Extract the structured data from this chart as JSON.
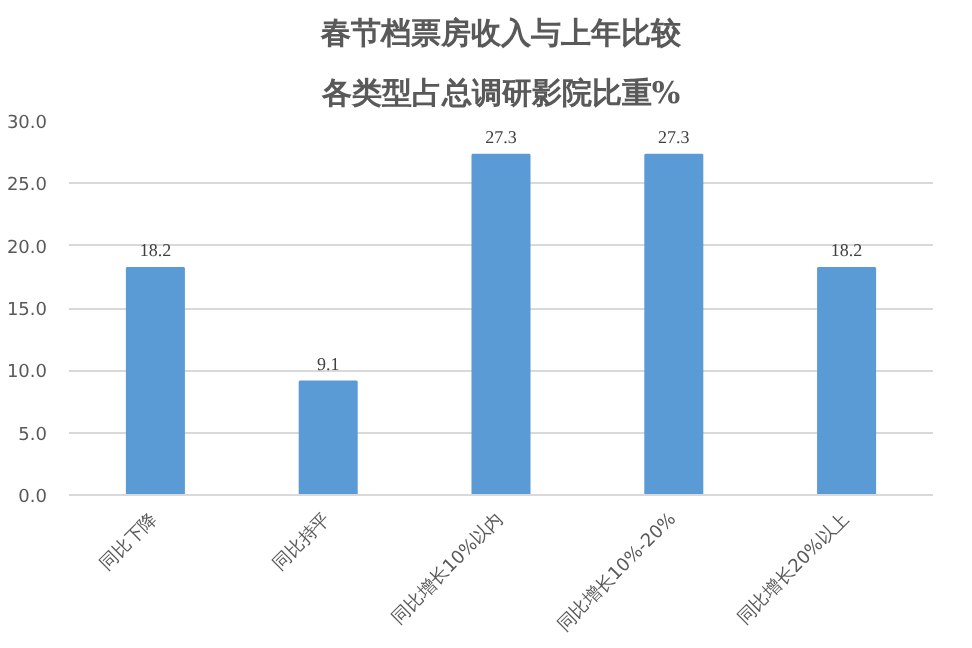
{
  "chart_data": {
    "type": "bar",
    "title": "春节档票房收入与上年比较",
    "subtitle": "各类型占总调研影院比重%",
    "categories": [
      "同比下降",
      "同比持平",
      "同比增长10%以内",
      "同比增长10%-20%",
      "同比增长20%以上"
    ],
    "values": [
      18.2,
      9.1,
      27.3,
      27.3,
      18.2
    ],
    "color": "#5b9bd5",
    "ylim": [
      0,
      30
    ],
    "yticks": [
      {
        "value": 0,
        "label": "0.0"
      },
      {
        "value": 5,
        "label": "5.0"
      },
      {
        "value": 10,
        "label": "10.0"
      },
      {
        "value": 15,
        "label": "15.0"
      },
      {
        "value": 20,
        "label": "20.0"
      },
      {
        "value": 25,
        "label": "25.0"
      },
      {
        "value": 30,
        "label": "30.0"
      }
    ],
    "grid": "y",
    "data_labels": true
  }
}
